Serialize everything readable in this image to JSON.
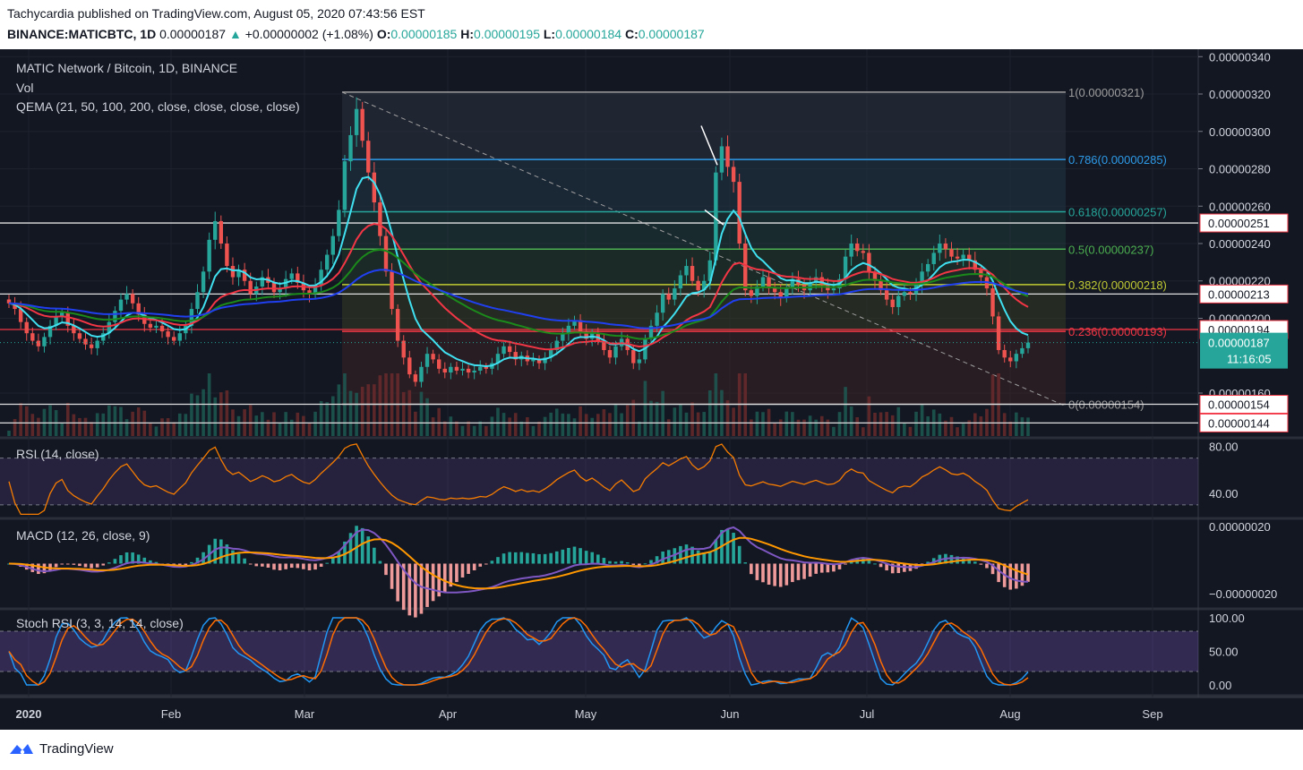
{
  "header": {
    "line1": "Tachycardia published on TradingView.com, August 05, 2020 07:43:56 EST",
    "symbol": "BINANCE:MATICBTC, 1D",
    "last": "0.00000187",
    "change": "+0.00000002 (+1.08%)",
    "o_label": "O:",
    "o": "0.00000185",
    "h_label": "H:",
    "h": "0.00000195",
    "l_label": "L:",
    "l": "0.00000184",
    "c_label": "C:",
    "c": "0.00000187"
  },
  "panes": {
    "main_title": "MATIC Network / Bitcoin, 1D, BINANCE",
    "vol_label": "Vol",
    "qema_label": "QEMA (21, 50, 100, 200, close, close, close, close)",
    "rsi_label": "RSI (14, close)",
    "macd_label": "MACD (12, 26, close, 9)",
    "stoch_label": "Stoch RSI (3, 3, 14, 14, close)"
  },
  "chart_data": {
    "type": "candlestick",
    "x_months": [
      "2020",
      "Feb",
      "Mar",
      "Apr",
      "May",
      "Jun",
      "Jul",
      "Aug",
      "Sep"
    ],
    "price_axis_ticks": [
      "0.00000340",
      "0.00000320",
      "0.00000300",
      "0.00000280",
      "0.00000260",
      "0.00000240",
      "0.00000220",
      "0.00000200",
      "0.00000160"
    ],
    "price_ylim": [
      1.37e-06,
      3.43e-06
    ],
    "price_tags": [
      {
        "price": 2.51e-06,
        "label": "0.00000251"
      },
      {
        "price": 2.13e-06,
        "label": "0.00000213"
      },
      {
        "price": 1.94e-06,
        "label": "0.00000194"
      },
      {
        "price": 1.54e-06,
        "label": "0.00000154"
      },
      {
        "price": 1.44e-06,
        "label": "0.00000144"
      }
    ],
    "last_price_tag": {
      "price": 1.87e-06,
      "label": "0.00000187",
      "countdown": "11:16:05"
    },
    "fibonacci": [
      {
        "level": "1",
        "price": 3.21e-06,
        "label": "1(0.00000321)",
        "color": "#9e9e9e"
      },
      {
        "level": "0.786",
        "price": 2.85e-06,
        "label": "0.786(0.00000285)",
        "color": "#2e9be8"
      },
      {
        "level": "0.618",
        "price": 2.57e-06,
        "label": "0.618(0.00000257)",
        "color": "#26a69a"
      },
      {
        "level": "0.5",
        "price": 2.37e-06,
        "label": "0.5(0.00000237)",
        "color": "#4caf50"
      },
      {
        "level": "0.382",
        "price": 2.18e-06,
        "label": "0.382(0.00000218)",
        "color": "#c0ca33"
      },
      {
        "level": "0.236",
        "price": 1.93e-06,
        "label": "0.236(0.00000193)",
        "color": "#f23645"
      },
      {
        "level": "0",
        "price": 1.54e-06,
        "label": "0(0.00000154)",
        "color": "#9e9e9e"
      }
    ],
    "closes": [
      2.08e-06,
      2.05e-06,
      1.98e-06,
      1.92e-06,
      1.88e-06,
      1.85e-06,
      1.9e-06,
      1.96e-06,
      2.01e-06,
      2.03e-06,
      1.96e-06,
      1.92e-06,
      1.89e-06,
      1.86e-06,
      1.84e-06,
      1.88e-06,
      1.92e-06,
      1.98e-06,
      2.04e-06,
      2.1e-06,
      2.13e-06,
      2.08e-06,
      2.02e-06,
      1.97e-06,
      1.95e-06,
      1.96e-06,
      1.93e-06,
      1.9e-06,
      1.88e-06,
      1.92e-06,
      1.96e-06,
      2.05e-06,
      2.14e-06,
      2.25e-06,
      2.42e-06,
      2.52e-06,
      2.4e-06,
      2.28e-06,
      2.22e-06,
      2.26e-06,
      2.2e-06,
      2.13e-06,
      2.17e-06,
      2.22e-06,
      2.19e-06,
      2.14e-06,
      2.16e-06,
      2.21e-06,
      2.24e-06,
      2.19e-06,
      2.15e-06,
      2.13e-06,
      2.18e-06,
      2.26e-06,
      2.34e-06,
      2.44e-06,
      2.58e-06,
      2.84e-06,
      2.98e-06,
      3.12e-06,
      2.95e-06,
      2.78e-06,
      2.62e-06,
      2.44e-06,
      2.25e-06,
      2.05e-06,
      1.88e-06,
      1.79e-06,
      1.7e-06,
      1.66e-06,
      1.74e-06,
      1.81e-06,
      1.78e-06,
      1.73e-06,
      1.71e-06,
      1.74e-06,
      1.72e-06,
      1.73e-06,
      1.71e-06,
      1.72e-06,
      1.74e-06,
      1.73e-06,
      1.76e-06,
      1.81e-06,
      1.85e-06,
      1.82e-06,
      1.78e-06,
      1.8e-06,
      1.77e-06,
      1.78e-06,
      1.76e-06,
      1.79e-06,
      1.83e-06,
      1.88e-06,
      1.92e-06,
      1.96e-06,
      1.99e-06,
      1.93e-06,
      1.89e-06,
      1.92e-06,
      1.88e-06,
      1.83e-06,
      1.79e-06,
      1.85e-06,
      1.89e-06,
      1.83e-06,
      1.76e-06,
      1.78e-06,
      1.89e-06,
      1.96e-06,
      2.03e-06,
      2.13e-06,
      2.1e-06,
      2.16e-06,
      2.23e-06,
      2.28e-06,
      2.2e-06,
      2.15e-06,
      2.2e-06,
      2.31e-06,
      2.78e-06,
      2.92e-06,
      2.81e-06,
      2.73e-06,
      2.4e-06,
      2.15e-06,
      2.12e-06,
      2.17e-06,
      2.22e-06,
      2.16e-06,
      2.14e-06,
      2.11e-06,
      2.16e-06,
      2.21e-06,
      2.18e-06,
      2.15e-06,
      2.19e-06,
      2.22e-06,
      2.18e-06,
      2.15e-06,
      2.16e-06,
      2.21e-06,
      2.33e-06,
      2.4e-06,
      2.36e-06,
      2.35e-06,
      2.25e-06,
      2.2e-06,
      2.15e-06,
      2.1e-06,
      2.06e-06,
      2.12e-06,
      2.14e-06,
      2.13e-06,
      2.18e-06,
      2.25e-06,
      2.29e-06,
      2.35e-06,
      2.4e-06,
      2.37e-06,
      2.33e-06,
      2.32e-06,
      2.34e-06,
      2.31e-06,
      2.26e-06,
      2.22e-06,
      2.16e-06,
      2.01e-06,
      1.83e-06,
      1.79e-06,
      1.77e-06,
      1.81e-06,
      1.84e-06,
      1.87e-06
    ],
    "series": [
      {
        "name": "QEMA 21",
        "color": "#40e0f0"
      },
      {
        "name": "QEMA 50",
        "color": "#f23645"
      },
      {
        "name": "QEMA 100",
        "color": "#1b8a1b"
      },
      {
        "name": "QEMA 200",
        "color": "#2040f0"
      }
    ],
    "rsi": {
      "ticks": [
        "80.00",
        "40.00"
      ],
      "ylim": [
        20,
        85
      ],
      "bands": [
        70,
        30
      ]
    },
    "macd": {
      "ticks": [
        "0.00000020",
        "−0.00000020"
      ]
    },
    "stoch": {
      "ticks": [
        "100.00",
        "50.00",
        "0.00"
      ],
      "bands": [
        80,
        20
      ]
    }
  },
  "colors": {
    "background": "#131722",
    "up": "#26a69a",
    "down": "#ef5350",
    "rsi": "#f57c00",
    "macd": "#7e57c2",
    "signal": "#ff9800"
  },
  "footer": {
    "brand": "TradingView",
    "icon": "tradingview-logo-icon"
  }
}
